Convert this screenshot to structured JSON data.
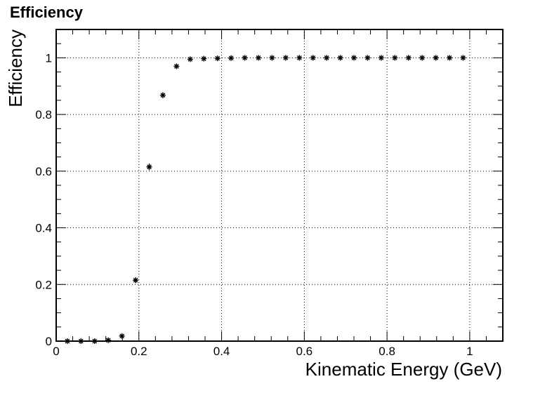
{
  "chart_data": {
    "type": "scatter",
    "title": "Efficiency",
    "xlabel": "Kinematic Energy (GeV)",
    "ylabel": "Efficiency",
    "xlim": [
      0,
      1.08
    ],
    "ylim": [
      0,
      1.1
    ],
    "grid": true,
    "marker": "asterisk",
    "x_ticks": [
      "0",
      "0.2",
      "0.4",
      "0.6",
      "0.8",
      "1"
    ],
    "y_ticks": [
      "0",
      "0.2",
      "0.4",
      "0.6",
      "0.8",
      "1"
    ],
    "series": [
      {
        "x": [
          0.027,
          0.06,
          0.093,
          0.126,
          0.159,
          0.192,
          0.225,
          0.258,
          0.291,
          0.324,
          0.357,
          0.39,
          0.423,
          0.456,
          0.489,
          0.522,
          0.555,
          0.588,
          0.621,
          0.654,
          0.687,
          0.72,
          0.753,
          0.786,
          0.819,
          0.852,
          0.885,
          0.918,
          0.951,
          0.984
        ],
        "y": [
          0.0,
          0.0,
          0.0,
          0.003,
          0.018,
          0.215,
          0.615,
          0.868,
          0.97,
          0.995,
          0.997,
          0.998,
          0.999,
          1.0,
          1.0,
          1.0,
          1.0,
          1.0,
          1.0,
          1.0,
          1.0,
          1.0,
          1.0,
          1.0,
          1.0,
          1.0,
          1.0,
          1.0,
          1.0,
          1.0
        ],
        "yerr": [
          0.0,
          0.0,
          0.0,
          0.002,
          0.005,
          0.01,
          0.012,
          0.01,
          0.006,
          0.003,
          0.002,
          0.001,
          0.001,
          0.0,
          0.0,
          0.0,
          0.0,
          0.0,
          0.0,
          0.0,
          0.0,
          0.0,
          0.0,
          0.0,
          0.0,
          0.0,
          0.0,
          0.0,
          0.0,
          0.0
        ],
        "color": "#000000"
      }
    ]
  }
}
